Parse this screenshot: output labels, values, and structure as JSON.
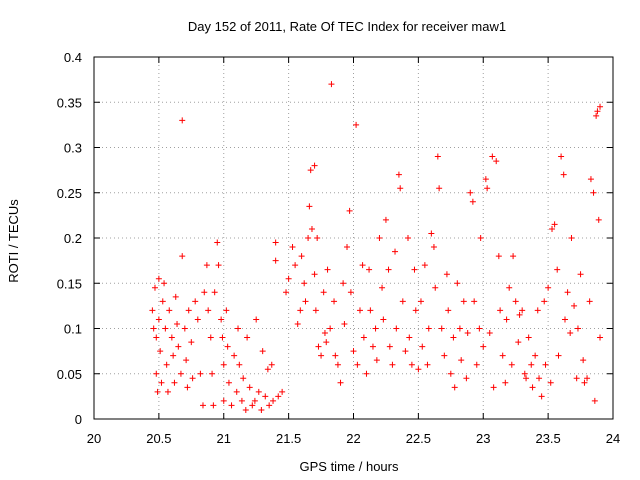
{
  "chart_data": {
    "type": "scatter",
    "title": "Day 152 of 2011, Rate Of TEC Index for receiver maw1",
    "xlabel": "GPS time / hours",
    "ylabel": "ROTI / TECUs",
    "xlim": [
      20,
      24
    ],
    "ylim": [
      0,
      0.4
    ],
    "xticks": [
      20,
      20.5,
      21,
      21.5,
      22,
      22.5,
      23,
      23.5,
      24
    ],
    "xtick_labels": [
      "20",
      "20.5",
      "21",
      "21.5",
      "22",
      "22.5",
      "23",
      "23.5",
      "24"
    ],
    "yticks": [
      0,
      0.05,
      0.1,
      0.15,
      0.2,
      0.25,
      0.3,
      0.35,
      0.4
    ],
    "ytick_labels": [
      "0",
      "0.05",
      "0.1",
      "0.15",
      "0.2",
      "0.25",
      "0.3",
      "0.35",
      "0.4"
    ],
    "grid": true,
    "marker": "+",
    "color": "#ff0000",
    "series": [
      {
        "name": "maw1",
        "points": [
          [
            20.45,
            0.12
          ],
          [
            20.46,
            0.1
          ],
          [
            20.47,
            0.145
          ],
          [
            20.48,
            0.09
          ],
          [
            20.48,
            0.05
          ],
          [
            20.49,
            0.03
          ],
          [
            20.5,
            0.155
          ],
          [
            20.5,
            0.11
          ],
          [
            20.51,
            0.075
          ],
          [
            20.52,
            0.04
          ],
          [
            20.53,
            0.13
          ],
          [
            20.54,
            0.15
          ],
          [
            20.55,
            0.1
          ],
          [
            20.56,
            0.06
          ],
          [
            20.57,
            0.03
          ],
          [
            20.58,
            0.12
          ],
          [
            20.6,
            0.09
          ],
          [
            20.61,
            0.07
          ],
          [
            20.62,
            0.04
          ],
          [
            20.63,
            0.135
          ],
          [
            20.64,
            0.105
          ],
          [
            20.65,
            0.08
          ],
          [
            20.67,
            0.05
          ],
          [
            20.68,
            0.33
          ],
          [
            20.68,
            0.18
          ],
          [
            20.7,
            0.1
          ],
          [
            20.71,
            0.065
          ],
          [
            20.72,
            0.035
          ],
          [
            20.73,
            0.12
          ],
          [
            20.75,
            0.085
          ],
          [
            20.76,
            0.045
          ],
          [
            20.78,
            0.13
          ],
          [
            20.8,
            0.11
          ],
          [
            20.82,
            0.05
          ],
          [
            20.84,
            0.015
          ],
          [
            20.85,
            0.14
          ],
          [
            20.87,
            0.17
          ],
          [
            20.88,
            0.12
          ],
          [
            20.9,
            0.09
          ],
          [
            20.91,
            0.05
          ],
          [
            20.92,
            0.015
          ],
          [
            20.93,
            0.14
          ],
          [
            20.95,
            0.195
          ],
          [
            20.96,
            0.17
          ],
          [
            20.98,
            0.11
          ],
          [
            20.99,
            0.09
          ],
          [
            21.0,
            0.06
          ],
          [
            21.0,
            0.02
          ],
          [
            21.02,
            0.12
          ],
          [
            21.03,
            0.08
          ],
          [
            21.04,
            0.04
          ],
          [
            21.06,
            0.015
          ],
          [
            21.08,
            0.07
          ],
          [
            21.1,
            0.03
          ],
          [
            21.11,
            0.1
          ],
          [
            21.12,
            0.06
          ],
          [
            21.14,
            0.02
          ],
          [
            21.15,
            0.045
          ],
          [
            21.17,
            0.01
          ],
          [
            21.18,
            0.09
          ],
          [
            21.2,
            0.035
          ],
          [
            21.22,
            0.015
          ],
          [
            21.24,
            0.02
          ],
          [
            21.25,
            0.11
          ],
          [
            21.27,
            0.03
          ],
          [
            21.29,
            0.01
          ],
          [
            21.3,
            0.075
          ],
          [
            21.32,
            0.025
          ],
          [
            21.34,
            0.055
          ],
          [
            21.35,
            0.015
          ],
          [
            21.37,
            0.06
          ],
          [
            21.38,
            0.02
          ],
          [
            21.4,
            0.195
          ],
          [
            21.4,
            0.175
          ],
          [
            21.42,
            0.025
          ],
          [
            21.45,
            0.03
          ],
          [
            21.48,
            0.14
          ],
          [
            21.5,
            0.155
          ],
          [
            21.53,
            0.19
          ],
          [
            21.55,
            0.17
          ],
          [
            21.57,
            0.105
          ],
          [
            21.59,
            0.12
          ],
          [
            21.6,
            0.18
          ],
          [
            21.62,
            0.15
          ],
          [
            21.63,
            0.13
          ],
          [
            21.65,
            0.2
          ],
          [
            21.66,
            0.235
          ],
          [
            21.67,
            0.275
          ],
          [
            21.68,
            0.21
          ],
          [
            21.7,
            0.28
          ],
          [
            21.7,
            0.16
          ],
          [
            21.71,
            0.12
          ],
          [
            21.72,
            0.2
          ],
          [
            21.73,
            0.08
          ],
          [
            21.75,
            0.07
          ],
          [
            21.77,
            0.14
          ],
          [
            21.78,
            0.095
          ],
          [
            21.79,
            0.085
          ],
          [
            21.8,
            0.165
          ],
          [
            21.82,
            0.1
          ],
          [
            21.83,
            0.37
          ],
          [
            21.85,
            0.13
          ],
          [
            21.86,
            0.07
          ],
          [
            21.88,
            0.06
          ],
          [
            21.9,
            0.04
          ],
          [
            21.92,
            0.15
          ],
          [
            21.93,
            0.105
          ],
          [
            21.95,
            0.19
          ],
          [
            21.97,
            0.23
          ],
          [
            21.98,
            0.14
          ],
          [
            22.0,
            0.075
          ],
          [
            22.02,
            0.325
          ],
          [
            22.03,
            0.06
          ],
          [
            22.05,
            0.12
          ],
          [
            22.07,
            0.17
          ],
          [
            22.08,
            0.09
          ],
          [
            22.1,
            0.05
          ],
          [
            22.12,
            0.165
          ],
          [
            22.13,
            0.12
          ],
          [
            22.15,
            0.08
          ],
          [
            22.17,
            0.1
          ],
          [
            22.18,
            0.065
          ],
          [
            22.2,
            0.2
          ],
          [
            22.22,
            0.145
          ],
          [
            22.23,
            0.11
          ],
          [
            22.25,
            0.22
          ],
          [
            22.27,
            0.165
          ],
          [
            22.28,
            0.08
          ],
          [
            22.3,
            0.06
          ],
          [
            22.32,
            0.185
          ],
          [
            22.33,
            0.1
          ],
          [
            22.35,
            0.27
          ],
          [
            22.36,
            0.255
          ],
          [
            22.38,
            0.13
          ],
          [
            22.4,
            0.075
          ],
          [
            22.42,
            0.2
          ],
          [
            22.43,
            0.09
          ],
          [
            22.45,
            0.06
          ],
          [
            22.47,
            0.165
          ],
          [
            22.48,
            0.12
          ],
          [
            22.5,
            0.055
          ],
          [
            22.52,
            0.13
          ],
          [
            22.53,
            0.08
          ],
          [
            22.55,
            0.17
          ],
          [
            22.57,
            0.06
          ],
          [
            22.58,
            0.1
          ],
          [
            22.6,
            0.205
          ],
          [
            22.62,
            0.19
          ],
          [
            22.63,
            0.145
          ],
          [
            22.65,
            0.29
          ],
          [
            22.66,
            0.255
          ],
          [
            22.68,
            0.1
          ],
          [
            22.7,
            0.07
          ],
          [
            22.72,
            0.16
          ],
          [
            22.73,
            0.12
          ],
          [
            22.75,
            0.05
          ],
          [
            22.77,
            0.09
          ],
          [
            22.78,
            0.035
          ],
          [
            22.8,
            0.15
          ],
          [
            22.82,
            0.1
          ],
          [
            22.83,
            0.065
          ],
          [
            22.85,
            0.13
          ],
          [
            22.87,
            0.045
          ],
          [
            22.88,
            0.095
          ],
          [
            22.9,
            0.25
          ],
          [
            22.92,
            0.24
          ],
          [
            22.93,
            0.13
          ],
          [
            22.95,
            0.06
          ],
          [
            22.97,
            0.1
          ],
          [
            22.98,
            0.2
          ],
          [
            23.0,
            0.08
          ],
          [
            23.02,
            0.265
          ],
          [
            23.03,
            0.255
          ],
          [
            23.05,
            0.095
          ],
          [
            23.07,
            0.29
          ],
          [
            23.08,
            0.035
          ],
          [
            23.1,
            0.285
          ],
          [
            23.12,
            0.18
          ],
          [
            23.13,
            0.12
          ],
          [
            23.15,
            0.07
          ],
          [
            23.17,
            0.04
          ],
          [
            23.18,
            0.11
          ],
          [
            23.2,
            0.145
          ],
          [
            23.22,
            0.06
          ],
          [
            23.23,
            0.18
          ],
          [
            23.25,
            0.13
          ],
          [
            23.27,
            0.085
          ],
          [
            23.28,
            0.115
          ],
          [
            23.3,
            0.12
          ],
          [
            23.32,
            0.05
          ],
          [
            23.33,
            0.045
          ],
          [
            23.35,
            0.09
          ],
          [
            23.37,
            0.06
          ],
          [
            23.38,
            0.035
          ],
          [
            23.4,
            0.07
          ],
          [
            23.42,
            0.12
          ],
          [
            23.43,
            0.045
          ],
          [
            23.45,
            0.025
          ],
          [
            23.47,
            0.13
          ],
          [
            23.48,
            0.06
          ],
          [
            23.5,
            0.145
          ],
          [
            23.52,
            0.04
          ],
          [
            23.53,
            0.21
          ],
          [
            23.55,
            0.215
          ],
          [
            23.57,
            0.165
          ],
          [
            23.58,
            0.07
          ],
          [
            23.6,
            0.29
          ],
          [
            23.62,
            0.27
          ],
          [
            23.63,
            0.11
          ],
          [
            23.65,
            0.14
          ],
          [
            23.67,
            0.095
          ],
          [
            23.68,
            0.2
          ],
          [
            23.7,
            0.125
          ],
          [
            23.72,
            0.045
          ],
          [
            23.73,
            0.1
          ],
          [
            23.75,
            0.16
          ],
          [
            23.77,
            0.065
          ],
          [
            23.78,
            0.04
          ],
          [
            23.8,
            0.045
          ],
          [
            23.82,
            0.13
          ],
          [
            23.83,
            0.265
          ],
          [
            23.85,
            0.25
          ],
          [
            23.86,
            0.02
          ],
          [
            23.87,
            0.335
          ],
          [
            23.88,
            0.34
          ],
          [
            23.89,
            0.22
          ],
          [
            23.9,
            0.345
          ],
          [
            23.9,
            0.09
          ]
        ]
      }
    ]
  }
}
